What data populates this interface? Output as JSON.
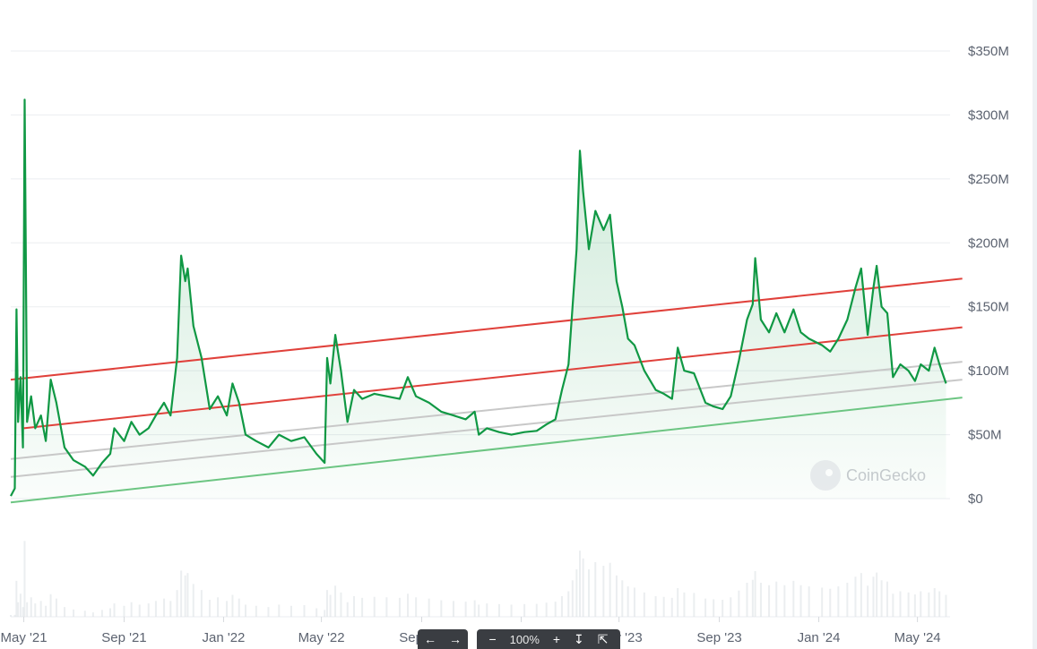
{
  "chart_data": {
    "type": "line",
    "y_unit": "USD volume",
    "ylim": [
      0,
      350000000
    ],
    "y_ticks": [
      {
        "value": 350000000,
        "label": "$350M"
      },
      {
        "value": 300000000,
        "label": "$300M"
      },
      {
        "value": 250000000,
        "label": "$250M"
      },
      {
        "value": 200000000,
        "label": "$200M"
      },
      {
        "value": 150000000,
        "label": "$150M"
      },
      {
        "value": 100000000,
        "label": "$100M"
      },
      {
        "value": 50000000,
        "label": "$50M"
      },
      {
        "value": 0,
        "label": "$0"
      }
    ],
    "x_range": [
      "2021-04-15",
      "2024-06-10"
    ],
    "x_ticks": [
      {
        "date": "2021-05-01",
        "label": "May '21"
      },
      {
        "date": "2021-09-01",
        "label": "Sep '21"
      },
      {
        "date": "2022-01-01",
        "label": "Jan '22"
      },
      {
        "date": "2022-05-01",
        "label": "May '22"
      },
      {
        "date": "2022-09-01",
        "label": "Sep '22"
      },
      {
        "date": "2023-01-01",
        "label": "Jan '23"
      },
      {
        "date": "2023-05-01",
        "label": "May '23"
      },
      {
        "date": "2023-09-01",
        "label": "Sep '23"
      },
      {
        "date": "2024-01-01",
        "label": "Jan '24"
      },
      {
        "date": "2024-05-01",
        "label": "May '24"
      }
    ],
    "grid": true,
    "series": [
      {
        "color": "#109844",
        "fill": "area-gradient",
        "points": [
          [
            "2021-04-15",
            2000000
          ],
          [
            "2021-04-20",
            8000000
          ],
          [
            "2021-04-22",
            148000000
          ],
          [
            "2021-04-24",
            60000000
          ],
          [
            "2021-04-27",
            95000000
          ],
          [
            "2021-04-30",
            40000000
          ],
          [
            "2021-05-02",
            312000000
          ],
          [
            "2021-05-05",
            60000000
          ],
          [
            "2021-05-10",
            80000000
          ],
          [
            "2021-05-15",
            55000000
          ],
          [
            "2021-05-22",
            65000000
          ],
          [
            "2021-05-28",
            45000000
          ],
          [
            "2021-06-03",
            93000000
          ],
          [
            "2021-06-10",
            75000000
          ],
          [
            "2021-06-20",
            40000000
          ],
          [
            "2021-07-01",
            30000000
          ],
          [
            "2021-07-15",
            25000000
          ],
          [
            "2021-07-25",
            18000000
          ],
          [
            "2021-08-05",
            28000000
          ],
          [
            "2021-08-15",
            35000000
          ],
          [
            "2021-08-20",
            55000000
          ],
          [
            "2021-09-01",
            45000000
          ],
          [
            "2021-09-10",
            60000000
          ],
          [
            "2021-09-20",
            50000000
          ],
          [
            "2021-10-01",
            55000000
          ],
          [
            "2021-10-10",
            65000000
          ],
          [
            "2021-10-20",
            75000000
          ],
          [
            "2021-10-28",
            65000000
          ],
          [
            "2021-11-05",
            110000000
          ],
          [
            "2021-11-10",
            190000000
          ],
          [
            "2021-11-15",
            170000000
          ],
          [
            "2021-11-18",
            180000000
          ],
          [
            "2021-11-25",
            135000000
          ],
          [
            "2021-12-05",
            110000000
          ],
          [
            "2021-12-15",
            70000000
          ],
          [
            "2021-12-25",
            80000000
          ],
          [
            "2022-01-05",
            65000000
          ],
          [
            "2022-01-12",
            90000000
          ],
          [
            "2022-01-20",
            75000000
          ],
          [
            "2022-01-28",
            50000000
          ],
          [
            "2022-02-10",
            45000000
          ],
          [
            "2022-02-25",
            40000000
          ],
          [
            "2022-03-10",
            50000000
          ],
          [
            "2022-03-25",
            45000000
          ],
          [
            "2022-04-10",
            48000000
          ],
          [
            "2022-04-25",
            35000000
          ],
          [
            "2022-05-05",
            28000000
          ],
          [
            "2022-05-08",
            110000000
          ],
          [
            "2022-05-12",
            90000000
          ],
          [
            "2022-05-18",
            128000000
          ],
          [
            "2022-05-25",
            100000000
          ],
          [
            "2022-06-02",
            60000000
          ],
          [
            "2022-06-10",
            85000000
          ],
          [
            "2022-06-20",
            78000000
          ],
          [
            "2022-07-05",
            82000000
          ],
          [
            "2022-07-20",
            80000000
          ],
          [
            "2022-08-05",
            78000000
          ],
          [
            "2022-08-15",
            95000000
          ],
          [
            "2022-08-25",
            80000000
          ],
          [
            "2022-09-10",
            75000000
          ],
          [
            "2022-09-25",
            68000000
          ],
          [
            "2022-10-10",
            65000000
          ],
          [
            "2022-10-25",
            62000000
          ],
          [
            "2022-11-05",
            68000000
          ],
          [
            "2022-11-10",
            50000000
          ],
          [
            "2022-11-20",
            55000000
          ],
          [
            "2022-12-05",
            52000000
          ],
          [
            "2022-12-20",
            50000000
          ],
          [
            "2023-01-05",
            52000000
          ],
          [
            "2023-01-20",
            53000000
          ],
          [
            "2023-02-01",
            58000000
          ],
          [
            "2023-02-12",
            62000000
          ],
          [
            "2023-02-20",
            85000000
          ],
          [
            "2023-02-28",
            105000000
          ],
          [
            "2023-03-05",
            150000000
          ],
          [
            "2023-03-10",
            195000000
          ],
          [
            "2023-03-14",
            272000000
          ],
          [
            "2023-03-18",
            240000000
          ],
          [
            "2023-03-25",
            195000000
          ],
          [
            "2023-04-02",
            225000000
          ],
          [
            "2023-04-12",
            210000000
          ],
          [
            "2023-04-20",
            222000000
          ],
          [
            "2023-04-28",
            170000000
          ],
          [
            "2023-05-05",
            150000000
          ],
          [
            "2023-05-12",
            125000000
          ],
          [
            "2023-05-20",
            120000000
          ],
          [
            "2023-06-01",
            100000000
          ],
          [
            "2023-06-15",
            85000000
          ],
          [
            "2023-06-25",
            82000000
          ],
          [
            "2023-07-05",
            78000000
          ],
          [
            "2023-07-12",
            118000000
          ],
          [
            "2023-07-20",
            100000000
          ],
          [
            "2023-08-01",
            98000000
          ],
          [
            "2023-08-15",
            75000000
          ],
          [
            "2023-08-25",
            72000000
          ],
          [
            "2023-09-05",
            70000000
          ],
          [
            "2023-09-15",
            80000000
          ],
          [
            "2023-09-25",
            108000000
          ],
          [
            "2023-10-05",
            140000000
          ],
          [
            "2023-10-12",
            152000000
          ],
          [
            "2023-10-15",
            188000000
          ],
          [
            "2023-10-22",
            140000000
          ],
          [
            "2023-11-01",
            130000000
          ],
          [
            "2023-11-10",
            145000000
          ],
          [
            "2023-11-20",
            130000000
          ],
          [
            "2023-12-01",
            148000000
          ],
          [
            "2023-12-10",
            130000000
          ],
          [
            "2023-12-20",
            125000000
          ],
          [
            "2024-01-05",
            120000000
          ],
          [
            "2024-01-15",
            115000000
          ],
          [
            "2024-01-25",
            125000000
          ],
          [
            "2024-02-05",
            140000000
          ],
          [
            "2024-02-15",
            165000000
          ],
          [
            "2024-02-22",
            180000000
          ],
          [
            "2024-03-01",
            128000000
          ],
          [
            "2024-03-08",
            165000000
          ],
          [
            "2024-03-12",
            182000000
          ],
          [
            "2024-03-18",
            150000000
          ],
          [
            "2024-03-25",
            145000000
          ],
          [
            "2024-04-01",
            95000000
          ],
          [
            "2024-04-10",
            105000000
          ],
          [
            "2024-04-20",
            100000000
          ],
          [
            "2024-04-28",
            92000000
          ],
          [
            "2024-05-05",
            105000000
          ],
          [
            "2024-05-15",
            100000000
          ],
          [
            "2024-05-22",
            118000000
          ],
          [
            "2024-05-28",
            105000000
          ],
          [
            "2024-06-05",
            90000000
          ]
        ]
      }
    ],
    "trendlines": [
      {
        "color": "#e0413b",
        "start": [
          "2021-04-15",
          93000000
        ],
        "end": [
          "2024-06-25",
          172000000
        ]
      },
      {
        "color": "#e0413b",
        "start": [
          "2021-05-01",
          55000000
        ],
        "end": [
          "2024-06-25",
          134000000
        ]
      },
      {
        "color": "#c8c8c8",
        "start": [
          "2021-04-15",
          31000000
        ],
        "end": [
          "2024-06-25",
          107000000
        ]
      },
      {
        "color": "#c8c8c8",
        "start": [
          "2021-04-15",
          17000000
        ],
        "end": [
          "2024-06-25",
          93000000
        ]
      },
      {
        "color": "#6cc582",
        "start": [
          "2021-04-15",
          -3000000
        ],
        "end": [
          "2024-06-25",
          79000000
        ]
      }
    ]
  },
  "watermark": {
    "text": "CoinGecko",
    "icon": "gecko-logo-icon"
  },
  "viewer": {
    "prev_icon": "arrow-left-icon",
    "next_icon": "arrow-right-icon",
    "zoom_out_icon": "minus-icon",
    "zoom_level": "100%",
    "zoom_in_icon": "plus-icon",
    "download_icon": "download-icon",
    "fit_icon": "collapse-icon"
  }
}
